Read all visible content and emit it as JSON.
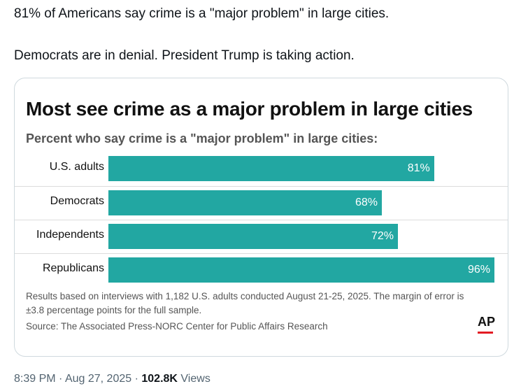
{
  "tweet": {
    "line1": "81% of Americans say crime is a \"major problem\" in large cities.",
    "line2": "Democrats are in denial. President Trump is taking action."
  },
  "card": {
    "title": "Most see crime as a major problem in large cities",
    "subtitle": "Percent who say crime is a \"major problem\" in large cities:",
    "note": "Results based on interviews with 1,182 U.S. adults conducted August 21-25, 2025. The margin of error is ±3.8 percentage points for the full sample.",
    "source": "Source: The Associated Press-NORC Center for Public Affairs Research",
    "logo": "AP"
  },
  "chart_data": {
    "type": "bar",
    "orientation": "horizontal",
    "title": "Most see crime as a major problem in large cities",
    "subtitle": "Percent who say crime is a \"major problem\" in large cities:",
    "categories": [
      "U.S. adults",
      "Democrats",
      "Independents",
      "Republicans"
    ],
    "values": [
      81,
      68,
      72,
      96
    ],
    "value_labels": [
      "81%",
      "68%",
      "72%",
      "96%"
    ],
    "xlim": [
      0,
      96
    ],
    "bar_color": "#22a7a2",
    "grid": false
  },
  "meta": {
    "time": "8:39 PM",
    "separator1": "·",
    "date": "Aug 27, 2025",
    "separator2": "·",
    "views_count": "102.8K",
    "views_label": "Views"
  }
}
